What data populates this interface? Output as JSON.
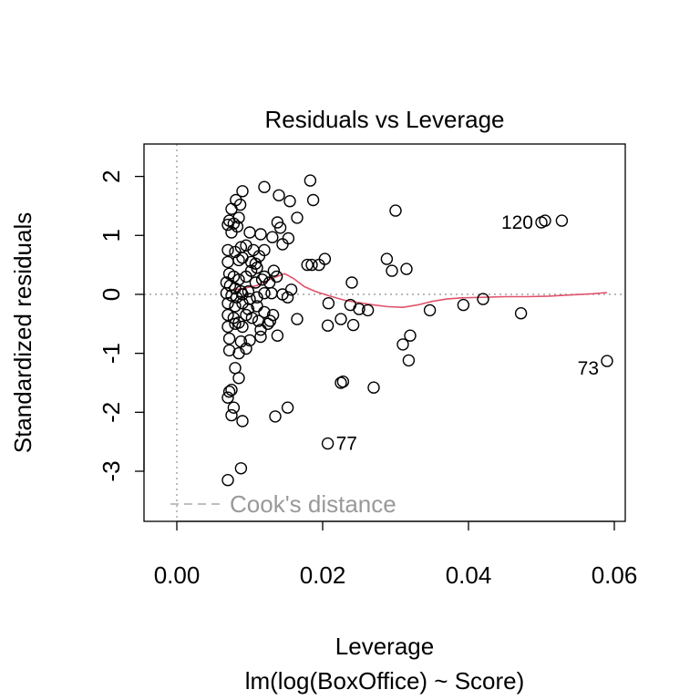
{
  "chart_data": {
    "type": "scatter",
    "title": "Residuals vs Leverage",
    "xlabel": "Leverage",
    "ylabel": "Standardized residuals",
    "subtitle": "lm(log(BoxOffice) ~ Score)",
    "xlim": [
      -0.0045,
      0.0615
    ],
    "ylim": [
      -3.85,
      2.55
    ],
    "xticks": [
      0.0,
      0.02,
      0.04,
      0.06
    ],
    "xtick_labels": [
      "0.00",
      "0.02",
      "0.04",
      "0.06"
    ],
    "yticks": [
      -3,
      -2,
      -1,
      0,
      1,
      2
    ],
    "ytick_labels": [
      "-3",
      "-2",
      "-1",
      "0",
      "1",
      "2"
    ],
    "grid": false,
    "reference_lines": {
      "horizontal_zero": true,
      "vertical_zero": true
    },
    "legend": {
      "label": "Cook's distance",
      "position": "bottom-left"
    },
    "colors": {
      "points": "#000000",
      "smooth": "#DF536B",
      "reference": "#999999"
    },
    "points": [
      {
        "x": 0.0072,
        "y": 1.25
      },
      {
        "x": 0.0078,
        "y": 1.2
      },
      {
        "x": 0.0085,
        "y": 1.3
      },
      {
        "x": 0.009,
        "y": 1.75
      },
      {
        "x": 0.0087,
        "y": 1.52
      },
      {
        "x": 0.0081,
        "y": 1.6
      },
      {
        "x": 0.0075,
        "y": 1.45
      },
      {
        "x": 0.007,
        "y": 1.18
      },
      {
        "x": 0.0083,
        "y": 1.15
      },
      {
        "x": 0.0075,
        "y": 1.05
      },
      {
        "x": 0.01,
        "y": 1.05
      },
      {
        "x": 0.012,
        "y": 1.82
      },
      {
        "x": 0.014,
        "y": 1.68
      },
      {
        "x": 0.0155,
        "y": 1.58
      },
      {
        "x": 0.0183,
        "y": 1.93
      },
      {
        "x": 0.0187,
        "y": 1.6
      },
      {
        "x": 0.0165,
        "y": 1.3
      },
      {
        "x": 0.0138,
        "y": 1.22
      },
      {
        "x": 0.0142,
        "y": 1.13
      },
      {
        "x": 0.0115,
        "y": 1.02
      },
      {
        "x": 0.0131,
        "y": 0.97
      },
      {
        "x": 0.0153,
        "y": 0.95
      },
      {
        "x": 0.0145,
        "y": 0.85
      },
      {
        "x": 0.007,
        "y": 0.75
      },
      {
        "x": 0.008,
        "y": 0.72
      },
      {
        "x": 0.0088,
        "y": 0.8
      },
      {
        "x": 0.0095,
        "y": 0.83
      },
      {
        "x": 0.0105,
        "y": 0.75
      },
      {
        "x": 0.0113,
        "y": 0.65
      },
      {
        "x": 0.012,
        "y": 0.75
      },
      {
        "x": 0.007,
        "y": 0.55
      },
      {
        "x": 0.0085,
        "y": 0.58
      },
      {
        "x": 0.009,
        "y": 0.62
      },
      {
        "x": 0.0102,
        "y": 0.55
      },
      {
        "x": 0.0108,
        "y": 0.52
      },
      {
        "x": 0.0072,
        "y": 0.35
      },
      {
        "x": 0.0078,
        "y": 0.3
      },
      {
        "x": 0.0085,
        "y": 0.25
      },
      {
        "x": 0.0095,
        "y": 0.3
      },
      {
        "x": 0.0102,
        "y": 0.4
      },
      {
        "x": 0.011,
        "y": 0.45
      },
      {
        "x": 0.012,
        "y": 0.3
      },
      {
        "x": 0.0133,
        "y": 0.4
      },
      {
        "x": 0.0068,
        "y": 0.2
      },
      {
        "x": 0.0073,
        "y": 0.15
      },
      {
        "x": 0.008,
        "y": 0.1
      },
      {
        "x": 0.0088,
        "y": 0.05
      },
      {
        "x": 0.0098,
        "y": 0.05
      },
      {
        "x": 0.0108,
        "y": 0.2
      },
      {
        "x": 0.0117,
        "y": 0.25
      },
      {
        "x": 0.0127,
        "y": 0.2
      },
      {
        "x": 0.0137,
        "y": 0.3
      },
      {
        "x": 0.0068,
        "y": 0.02
      },
      {
        "x": 0.0075,
        "y": -0.02
      },
      {
        "x": 0.0082,
        "y": -0.05
      },
      {
        "x": 0.009,
        "y": 0.0
      },
      {
        "x": 0.01,
        "y": -0.08
      },
      {
        "x": 0.011,
        "y": -0.05
      },
      {
        "x": 0.012,
        "y": 0.02
      },
      {
        "x": 0.013,
        "y": 0.02
      },
      {
        "x": 0.0145,
        "y": 0.0
      },
      {
        "x": 0.0152,
        "y": -0.05
      },
      {
        "x": 0.0157,
        "y": 0.08
      },
      {
        "x": 0.007,
        "y": -0.15
      },
      {
        "x": 0.008,
        "y": -0.2
      },
      {
        "x": 0.009,
        "y": -0.15
      },
      {
        "x": 0.0098,
        "y": -0.25
      },
      {
        "x": 0.011,
        "y": -0.2
      },
      {
        "x": 0.012,
        "y": -0.3
      },
      {
        "x": 0.007,
        "y": -0.35
      },
      {
        "x": 0.0078,
        "y": -0.4
      },
      {
        "x": 0.0085,
        "y": -0.48
      },
      {
        "x": 0.0095,
        "y": -0.35
      },
      {
        "x": 0.0103,
        "y": -0.4
      },
      {
        "x": 0.0112,
        "y": -0.45
      },
      {
        "x": 0.0125,
        "y": -0.5
      },
      {
        "x": 0.0132,
        "y": -0.35
      },
      {
        "x": 0.007,
        "y": -0.55
      },
      {
        "x": 0.008,
        "y": -0.5
      },
      {
        "x": 0.009,
        "y": -0.55
      },
      {
        "x": 0.0115,
        "y": -0.6
      },
      {
        "x": 0.0128,
        "y": -0.45
      },
      {
        "x": 0.0165,
        "y": -0.42
      },
      {
        "x": 0.0072,
        "y": -0.75
      },
      {
        "x": 0.0088,
        "y": -0.8
      },
      {
        "x": 0.01,
        "y": -0.78
      },
      {
        "x": 0.0115,
        "y": -0.72
      },
      {
        "x": 0.0138,
        "y": -0.7
      },
      {
        "x": 0.0072,
        "y": -0.95
      },
      {
        "x": 0.0085,
        "y": -1.0
      },
      {
        "x": 0.0095,
        "y": -0.92
      },
      {
        "x": 0.008,
        "y": -1.25
      },
      {
        "x": 0.0085,
        "y": -1.42
      },
      {
        "x": 0.0075,
        "y": -1.62
      },
      {
        "x": 0.0072,
        "y": -1.65
      },
      {
        "x": 0.007,
        "y": -1.75
      },
      {
        "x": 0.0078,
        "y": -1.92
      },
      {
        "x": 0.0075,
        "y": -2.05
      },
      {
        "x": 0.009,
        "y": -2.15
      },
      {
        "x": 0.0135,
        "y": -2.07
      },
      {
        "x": 0.0152,
        "y": -1.92
      },
      {
        "x": 0.0088,
        "y": -2.95
      },
      {
        "x": 0.007,
        "y": -3.15
      },
      {
        "x": 0.0179,
        "y": 0.5
      },
      {
        "x": 0.0185,
        "y": 0.5
      },
      {
        "x": 0.0195,
        "y": 0.5
      },
      {
        "x": 0.0203,
        "y": 0.6
      },
      {
        "x": 0.0208,
        "y": -0.15
      },
      {
        "x": 0.0207,
        "y": -0.53
      },
      {
        "x": 0.0225,
        "y": -0.42
      },
      {
        "x": 0.024,
        "y": 0.2
      },
      {
        "x": 0.0238,
        "y": -0.18
      },
      {
        "x": 0.025,
        "y": -0.25
      },
      {
        "x": 0.0242,
        "y": -0.52
      },
      {
        "x": 0.0262,
        "y": -0.27
      },
      {
        "x": 0.0225,
        "y": -1.5
      },
      {
        "x": 0.0228,
        "y": -1.48
      },
      {
        "x": 0.027,
        "y": -1.58
      },
      {
        "x": 0.0207,
        "y": -2.53
      },
      {
        "x": 0.03,
        "y": 1.42
      },
      {
        "x": 0.0288,
        "y": 0.6
      },
      {
        "x": 0.0295,
        "y": 0.4
      },
      {
        "x": 0.0315,
        "y": 0.43
      },
      {
        "x": 0.031,
        "y": -0.85
      },
      {
        "x": 0.032,
        "y": -0.7
      },
      {
        "x": 0.0318,
        "y": -1.12
      },
      {
        "x": 0.0347,
        "y": -0.27
      },
      {
        "x": 0.0393,
        "y": -0.18
      },
      {
        "x": 0.042,
        "y": -0.08
      },
      {
        "x": 0.0472,
        "y": -0.32
      },
      {
        "x": 0.05,
        "y": 1.22
      },
      {
        "x": 0.0505,
        "y": 1.25
      },
      {
        "x": 0.0528,
        "y": 1.25
      },
      {
        "x": 0.059,
        "y": -1.13
      }
    ],
    "point_labels": [
      {
        "text": "120",
        "x": 0.05,
        "y": 1.22,
        "side": "left"
      },
      {
        "text": "73",
        "x": 0.059,
        "y": -1.13,
        "side": "left"
      },
      {
        "text": "77",
        "x": 0.0207,
        "y": -2.53,
        "side": "right"
      }
    ],
    "smooth_line": [
      {
        "x": 0.0068,
        "y": 0.06
      },
      {
        "x": 0.009,
        "y": 0.1
      },
      {
        "x": 0.011,
        "y": 0.15
      },
      {
        "x": 0.013,
        "y": 0.27
      },
      {
        "x": 0.0148,
        "y": 0.35
      },
      {
        "x": 0.016,
        "y": 0.27
      },
      {
        "x": 0.0175,
        "y": 0.13
      },
      {
        "x": 0.019,
        "y": 0.05
      },
      {
        "x": 0.021,
        "y": -0.03
      },
      {
        "x": 0.023,
        "y": -0.1
      },
      {
        "x": 0.025,
        "y": -0.14
      },
      {
        "x": 0.027,
        "y": -0.18
      },
      {
        "x": 0.029,
        "y": -0.21
      },
      {
        "x": 0.031,
        "y": -0.22
      },
      {
        "x": 0.033,
        "y": -0.18
      },
      {
        "x": 0.035,
        "y": -0.12
      },
      {
        "x": 0.037,
        "y": -0.08
      },
      {
        "x": 0.039,
        "y": -0.06
      },
      {
        "x": 0.042,
        "y": -0.05
      },
      {
        "x": 0.045,
        "y": -0.04
      },
      {
        "x": 0.048,
        "y": -0.04
      },
      {
        "x": 0.051,
        "y": -0.03
      },
      {
        "x": 0.054,
        "y": -0.01
      },
      {
        "x": 0.057,
        "y": 0.01
      },
      {
        "x": 0.059,
        "y": 0.03
      }
    ]
  }
}
